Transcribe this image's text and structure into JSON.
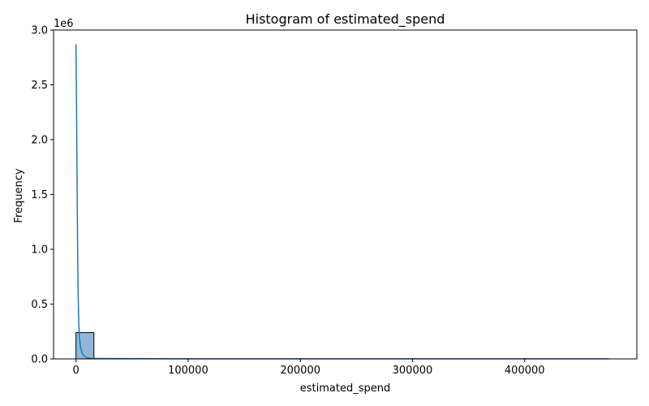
{
  "chart_data": {
    "type": "bar",
    "title": "Histogram of estimated_spend",
    "xlabel": "estimated_spend",
    "ylabel": "Frequency",
    "y_offset_label": "1e6",
    "xlim": [
      -20000,
      500000
    ],
    "ylim": [
      0,
      3.0
    ],
    "x_ticks": [
      0,
      100000,
      200000,
      300000,
      400000
    ],
    "x_tick_labels": [
      "0",
      "100000",
      "200000",
      "300000",
      "400000"
    ],
    "y_ticks": [
      0.0,
      0.5,
      1.0,
      1.5,
      2.0,
      2.5,
      3.0
    ],
    "y_tick_labels": [
      "0.0",
      "0.5",
      "1.0",
      "1.5",
      "2.0",
      "2.5",
      "3.0"
    ],
    "grid": false,
    "bins": [
      {
        "x0": 0,
        "x1": 16000,
        "count": 0.24
      }
    ],
    "kde_line": [
      [
        0,
        2.87
      ],
      [
        500,
        2.3
      ],
      [
        1000,
        1.6
      ],
      [
        1500,
        0.95
      ],
      [
        2000,
        0.55
      ],
      [
        2500,
        0.33
      ],
      [
        3000,
        0.2
      ],
      [
        4000,
        0.11
      ],
      [
        5000,
        0.065
      ],
      [
        6000,
        0.04
      ],
      [
        8000,
        0.02
      ],
      [
        10000,
        0.01
      ],
      [
        13000,
        0.006
      ],
      [
        20000,
        0.004
      ],
      [
        50000,
        0.003
      ],
      [
        100000,
        0.001
      ],
      [
        200000,
        0.001
      ],
      [
        300000,
        0.001
      ],
      [
        400000,
        0.001
      ],
      [
        475000,
        0.001
      ]
    ],
    "colors": {
      "bar_fill": "#8fb8d9",
      "bar_edge": "#000000",
      "line": "#1f77b4"
    }
  }
}
